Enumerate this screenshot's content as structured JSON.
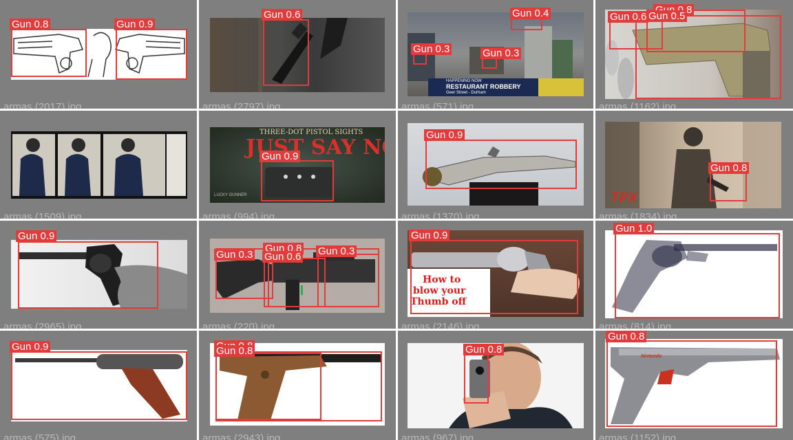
{
  "colors": {
    "tile_bg": "#7f7f7f",
    "box": "#e23b3b",
    "caption": "#b9b9b9"
  },
  "tiles": [
    {
      "caption": "armas (2017).jpg",
      "labels": [
        "Gun 0.8",
        "Gun 0.9"
      ]
    },
    {
      "caption": "armas (2797).jpg",
      "labels": [
        "Gun 0.6"
      ]
    },
    {
      "caption": "armas (571).jpg",
      "labels": [
        "Gun 0.4",
        "Gun 0.3",
        "Gun 0.3"
      ],
      "overlay": [
        "HAPPENING NOW",
        "RESTAURANT ROBBERY",
        "Geer Street - Durham"
      ]
    },
    {
      "caption": "armas (1162).jpg",
      "labels": [
        "Gun 0.6",
        "Gun 0.5",
        "Gun 0.8"
      ]
    },
    {
      "caption": "armas (1509).jpg",
      "labels": []
    },
    {
      "caption": "armas (994).jpg",
      "labels": [
        "Gun 0.9"
      ],
      "overlay": [
        "THREE-DOT PISTOL SIGHTS",
        "JUST SAY NO!",
        "LUCKY GUNNER"
      ]
    },
    {
      "caption": "armas (1370).jpg",
      "labels": [
        "Gun 0.9"
      ]
    },
    {
      "caption": "armas (1834).jpg",
      "labels": [
        "Gun 0.8"
      ],
      "overlay": [
        "TPX"
      ]
    },
    {
      "caption": "armas (2965).jpg",
      "labels": [
        "Gun 0.9"
      ]
    },
    {
      "caption": "armas (220).jpg",
      "labels": [
        "Gun 0.3",
        "Gun 0.8",
        "Gun 0.6",
        "Gun 0.3"
      ]
    },
    {
      "caption": "armas (2146).jpg",
      "labels": [
        "Gun 0.9"
      ],
      "overlay": [
        "How to",
        "blow your",
        "Thumb off"
      ]
    },
    {
      "caption": "armas (814).jpg",
      "labels": [
        "Gun 1.0"
      ]
    },
    {
      "caption": "armas (575).jpg",
      "labels": [
        "Gun 0.9"
      ]
    },
    {
      "caption": "armas (2943).jpg",
      "labels": [
        "Gun 0.8",
        "Gun 0.8"
      ]
    },
    {
      "caption": "armas (967).jpg",
      "labels": [
        "Gun 0.8"
      ]
    },
    {
      "caption": "armas (1152).jpg",
      "labels": [
        "Gun 0.8"
      ],
      "overlay": [
        "Nintendo"
      ]
    }
  ]
}
